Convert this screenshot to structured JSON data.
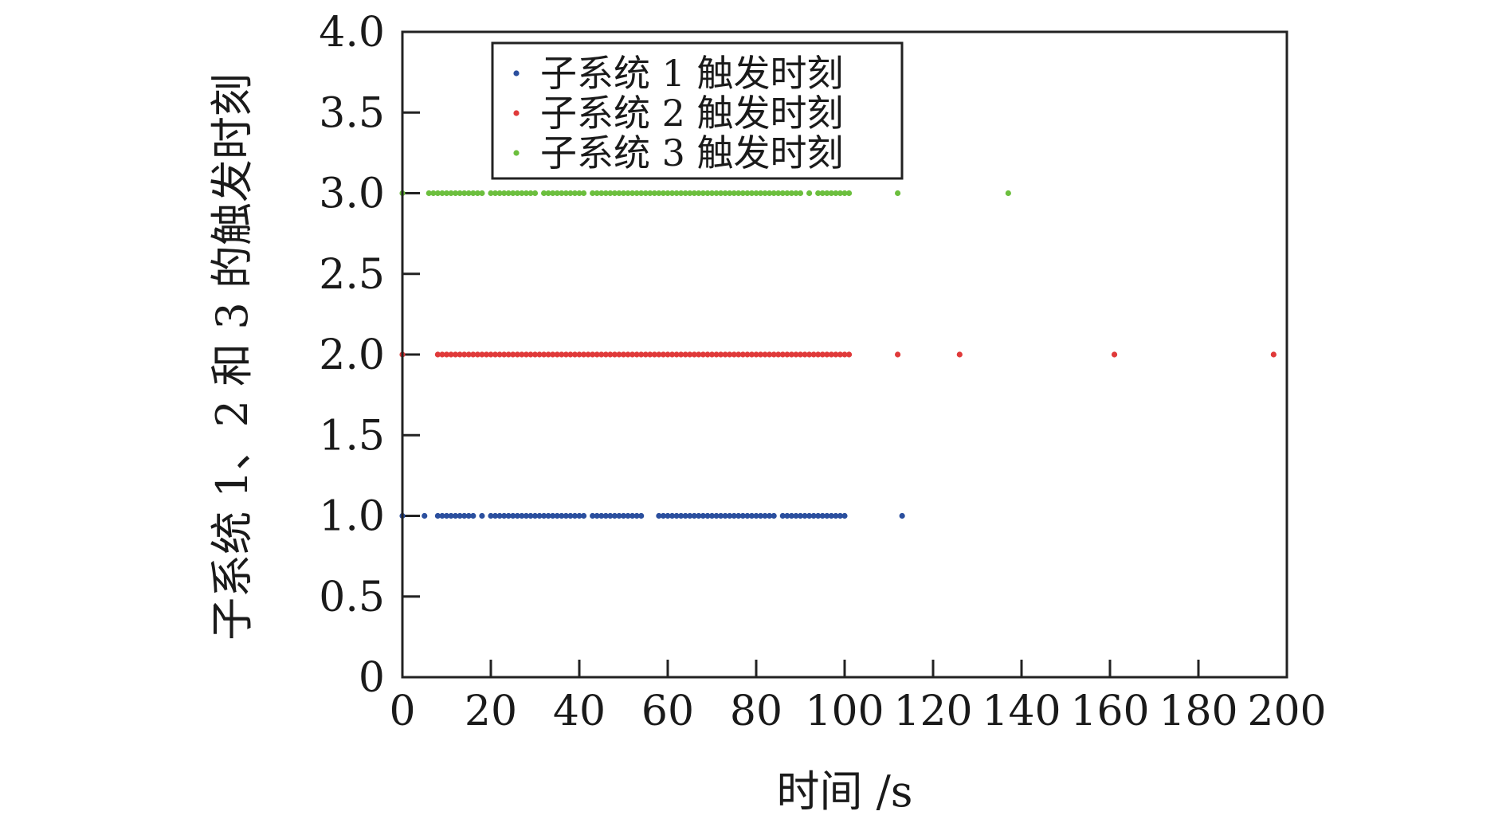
{
  "chart_data": {
    "type": "scatter",
    "xlabel": "时间 /s",
    "ylabel": "子系统 1、2 和 3 的触发时刻",
    "xlim": [
      0,
      200
    ],
    "ylim": [
      0,
      4.0
    ],
    "x_ticks": [
      "0",
      "20",
      "40",
      "60",
      "80",
      "100",
      "120",
      "140",
      "160",
      "180",
      "200"
    ],
    "y_ticks": [
      "0",
      "0.5",
      "1.0",
      "1.5",
      "2.0",
      "2.5",
      "3.0",
      "3.5",
      "4.0"
    ],
    "legend_position": "top-left",
    "series": [
      {
        "name": "子系统 1 触发时刻",
        "color": "#2b4f9e",
        "y": 1.0,
        "x": [
          0,
          5,
          8,
          9,
          10,
          11,
          12,
          13,
          14,
          15,
          16,
          18,
          20,
          21,
          22,
          23,
          24,
          25,
          26,
          27,
          28,
          29,
          30,
          31,
          32,
          33,
          34,
          35,
          36,
          37,
          38,
          39,
          40,
          41,
          43,
          44,
          45,
          46,
          47,
          48,
          49,
          50,
          51,
          52,
          53,
          54,
          58,
          59,
          60,
          61,
          62,
          63,
          64,
          65,
          66,
          67,
          68,
          69,
          70,
          71,
          72,
          73,
          74,
          75,
          76,
          77,
          78,
          79,
          80,
          81,
          82,
          83,
          84,
          86,
          87,
          88,
          89,
          90,
          91,
          92,
          93,
          94,
          95,
          96,
          97,
          98,
          99,
          100,
          113
        ]
      },
      {
        "name": "子系统 2 触发时刻",
        "color": "#e03a3a",
        "y": 2.0,
        "x": [
          0,
          8,
          9,
          10,
          11,
          12,
          13,
          14,
          15,
          16,
          17,
          18,
          19,
          20,
          21,
          22,
          23,
          24,
          25,
          26,
          27,
          28,
          29,
          30,
          31,
          32,
          33,
          34,
          35,
          36,
          37,
          38,
          39,
          40,
          41,
          42,
          43,
          44,
          45,
          46,
          47,
          48,
          49,
          50,
          51,
          52,
          53,
          54,
          55,
          56,
          57,
          58,
          59,
          60,
          61,
          62,
          63,
          64,
          65,
          66,
          67,
          68,
          69,
          70,
          71,
          72,
          73,
          74,
          75,
          76,
          77,
          78,
          79,
          80,
          81,
          82,
          83,
          84,
          85,
          86,
          87,
          88,
          89,
          90,
          91,
          92,
          93,
          94,
          95,
          96,
          97,
          98,
          99,
          100,
          101,
          112,
          126,
          161,
          197
        ]
      },
      {
        "name": "子系统 3 触发时刻",
        "color": "#6cbf3e",
        "y": 3.0,
        "x": [
          0,
          6,
          7,
          8,
          9,
          10,
          11,
          12,
          13,
          14,
          15,
          16,
          17,
          18,
          20,
          21,
          22,
          23,
          24,
          25,
          26,
          27,
          28,
          29,
          30,
          32,
          33,
          34,
          35,
          36,
          37,
          38,
          39,
          40,
          41,
          43,
          44,
          45,
          46,
          47,
          48,
          49,
          50,
          51,
          52,
          53,
          54,
          55,
          56,
          57,
          58,
          59,
          60,
          61,
          62,
          63,
          64,
          65,
          66,
          67,
          68,
          69,
          70,
          71,
          72,
          73,
          74,
          75,
          76,
          77,
          78,
          79,
          80,
          81,
          82,
          83,
          84,
          85,
          86,
          87,
          88,
          89,
          90,
          92,
          94,
          95,
          96,
          97,
          98,
          99,
          100,
          101,
          112,
          137
        ]
      }
    ]
  }
}
